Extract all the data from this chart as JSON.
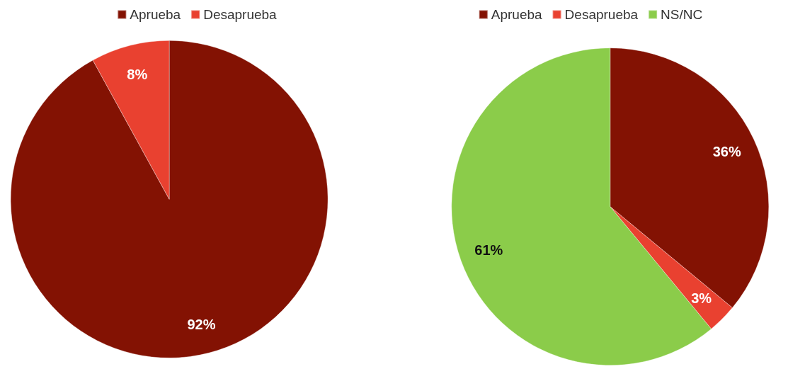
{
  "chart_data": [
    {
      "type": "pie",
      "categories": [
        "Aprueba",
        "Desaprueba"
      ],
      "values": [
        92,
        8
      ],
      "colors": [
        "#831203",
        "#e94130"
      ],
      "value_labels": [
        "92%",
        "8%"
      ],
      "legend": "top"
    },
    {
      "type": "pie",
      "categories": [
        "Aprueba",
        "Desaprueba",
        "NS/NC"
      ],
      "values": [
        36,
        3,
        61
      ],
      "colors": [
        "#831203",
        "#e94130",
        "#8bcc4a"
      ],
      "value_labels": [
        "36%",
        "3%",
        "61%"
      ],
      "legend": "top"
    }
  ]
}
